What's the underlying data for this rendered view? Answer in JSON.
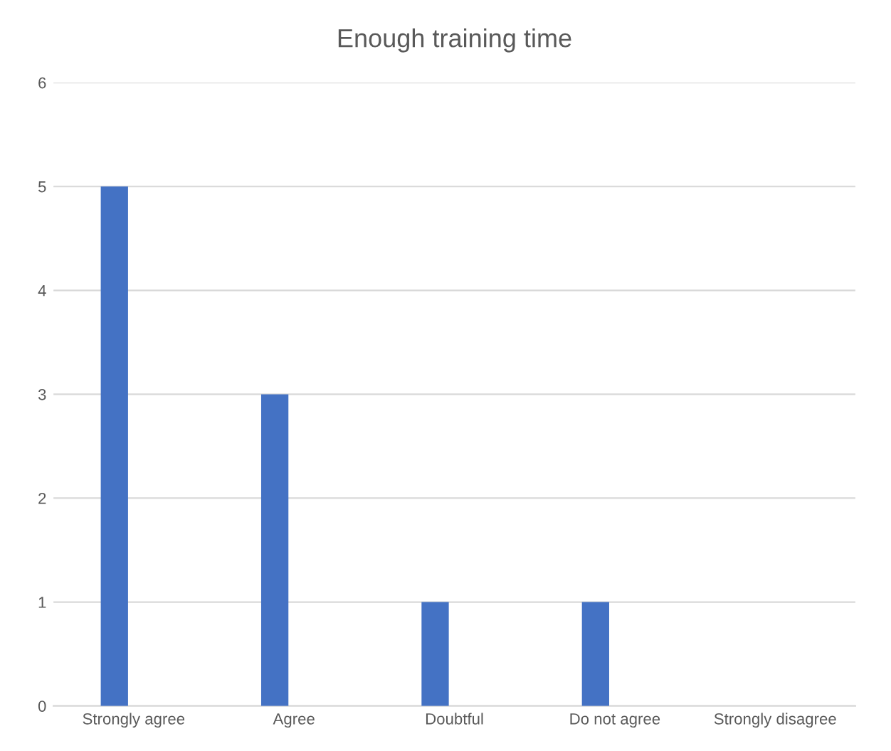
{
  "chart_data": {
    "type": "bar",
    "title": "Enough training time",
    "categories": [
      "Strongly agree",
      "Agree",
      "Doubtful",
      "Do not agree",
      "Strongly disagree"
    ],
    "values": [
      5,
      3,
      1,
      1,
      0
    ],
    "color": "#4472c4",
    "ylim": [
      0,
      6
    ],
    "yticks": [
      0,
      1,
      2,
      3,
      4,
      5,
      6
    ],
    "grid": "y"
  }
}
